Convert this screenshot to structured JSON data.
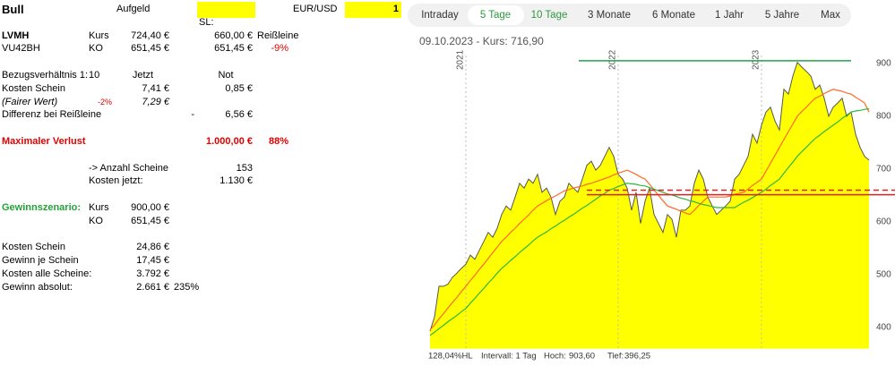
{
  "sheet": {
    "rows": [
      [
        "Bull",
        null,
        "Aufgeld",
        null,
        null,
        null,
        "EUR/USD",
        "1"
      ],
      [
        null,
        null,
        null,
        null,
        "SL:"
      ],
      [
        "LVMH",
        "Kurs",
        "724,40 €",
        null,
        "660,00 €",
        "Reißleine"
      ],
      [
        "VU42BH",
        "KO",
        "651,45 €",
        null,
        "651,45 €",
        "-9%"
      ],
      [],
      [
        "Bezugsverhältnis 1:",
        "10",
        "Jetzt",
        null,
        "Not"
      ],
      [
        "Kosten Schein",
        null,
        "7,41 €",
        null,
        "0,85 €"
      ],
      [
        "(Fairer Wert)",
        "-2%",
        "7,29 €"
      ],
      [
        "Differenz bei Reißleine",
        null,
        null,
        "-",
        "6,56 €"
      ],
      [],
      [
        "Maximaler Verlust",
        null,
        null,
        null,
        "1.000,00 €",
        "88%"
      ],
      [],
      [
        null,
        "-> Anzahl Scheine",
        null,
        null,
        "153"
      ],
      [
        null,
        "Kosten jetzt:",
        null,
        null,
        "1.130 €"
      ],
      [],
      [
        "Gewinnszenario:",
        "Kurs",
        "900,00 €"
      ],
      [
        null,
        "KO",
        "651,45 €"
      ],
      [],
      [
        "Kosten Schein",
        null,
        "24,86 €"
      ],
      [
        "Gewinn je Schein",
        null,
        "17,45 €"
      ],
      [
        "Kosten alle Scheine:",
        null,
        "3.792 €"
      ],
      [
        "Gewinn absolut:",
        null,
        "2.661 €",
        "235%"
      ]
    ]
  },
  "panel": {
    "tabs": [
      "Intraday",
      "5 Tage",
      "10 Tage",
      "3 Monate",
      "6 Monate",
      "1 Jahr",
      "5 Jahre",
      "Max"
    ],
    "header": "09.10.2023  -  Kurs: 716,90",
    "footer": {
      "range": "128,04%HL",
      "interval": "Intervall: 1 Tag",
      "high_label": "Hoch:",
      "high": "903,60",
      "low_label": "Tief:",
      "low": "396,25"
    }
  },
  "chart": {
    "type": "area",
    "xlim": [
      0,
      98
    ],
    "ylim": [
      360,
      915
    ],
    "yticks": [
      400,
      500,
      600,
      700,
      800,
      900
    ],
    "year_markers": [
      {
        "label": "2021",
        "index": 8
      },
      {
        "label": "2022",
        "index": 42
      },
      {
        "label": "2023",
        "index": 74
      }
    ],
    "series": [
      {
        "color": "#ffff00",
        "line_color": "#555555",
        "values": [
          393,
          420,
          478,
          478,
          482,
          495,
          503,
          512,
          520,
          537,
          529,
          546,
          563,
          580,
          571,
          588,
          614,
          630,
          622,
          647,
          673,
          664,
          681,
          673,
          690,
          656,
          664,
          647,
          614,
          639,
          647,
          673,
          664,
          656,
          681,
          707,
          715,
          698,
          707,
          724,
          741,
          724,
          690,
          681,
          664,
          622,
          656,
          597,
          639,
          664,
          614,
          597,
          580,
          614,
          605,
          571,
          622,
          622,
          630,
          673,
          698,
          681,
          647,
          630,
          614,
          622,
          630,
          639,
          681,
          690,
          707,
          724,
          766,
          749,
          783,
          808,
          817,
          791,
          774,
          851,
          842,
          876,
          902,
          893,
          885,
          876,
          851,
          859,
          834,
          800,
          817,
          825,
          834,
          800,
          808,
          766,
          741,
          724,
          717
        ]
      },
      {
        "color": "#ff6a2a",
        "values": [
          395,
          405,
          416,
          426,
          437,
          447,
          457,
          468,
          478,
          489,
          499,
          510,
          520,
          531,
          542,
          552,
          563,
          571,
          580,
          588,
          597,
          605,
          613,
          622,
          630,
          635,
          640,
          645,
          649,
          654,
          659,
          661,
          664,
          666,
          668,
          671,
          673,
          676,
          679,
          682,
          685,
          689,
          692,
          695,
          698,
          694,
          690,
          685,
          681,
          671,
          661,
          650,
          640,
          630,
          627,
          624,
          620,
          617,
          614,
          622,
          631,
          639,
          647,
          647,
          647,
          647,
          647,
          649,
          652,
          654,
          656,
          662,
          669,
          675,
          681,
          696,
          711,
          726,
          741,
          756,
          771,
          785,
          800,
          809,
          817,
          826,
          834,
          838,
          843,
          847,
          851,
          849,
          847,
          844,
          842,
          836,
          831,
          825,
          808
        ]
      },
      {
        "color": "#2db83d",
        "values": [
          385,
          391,
          398,
          404,
          411,
          417,
          423,
          430,
          436,
          446,
          455,
          465,
          474,
          484,
          493,
          503,
          512,
          519,
          527,
          534,
          542,
          549,
          556,
          564,
          571,
          576,
          581,
          587,
          592,
          598,
          603,
          609,
          614,
          620,
          626,
          631,
          637,
          643,
          649,
          654,
          660,
          663,
          667,
          670,
          673,
          672,
          671,
          669,
          668,
          665,
          662,
          659,
          656,
          653,
          651,
          648,
          645,
          643,
          640,
          638,
          635,
          633,
          631,
          629,
          627,
          627,
          627,
          627,
          627,
          632,
          637,
          641,
          646,
          651,
          656,
          662,
          669,
          675,
          681,
          692,
          703,
          713,
          724,
          733,
          741,
          750,
          758,
          764,
          771,
          777,
          783,
          789,
          796,
          802,
          808,
          810,
          811,
          813,
          814
        ]
      }
    ],
    "levels": [
      {
        "value": 905,
        "color": "#22a34a"
      },
      {
        "value": 660,
        "color": "#e02020",
        "dashed": true
      },
      {
        "value": 651.45,
        "color": "#e02020"
      }
    ]
  }
}
